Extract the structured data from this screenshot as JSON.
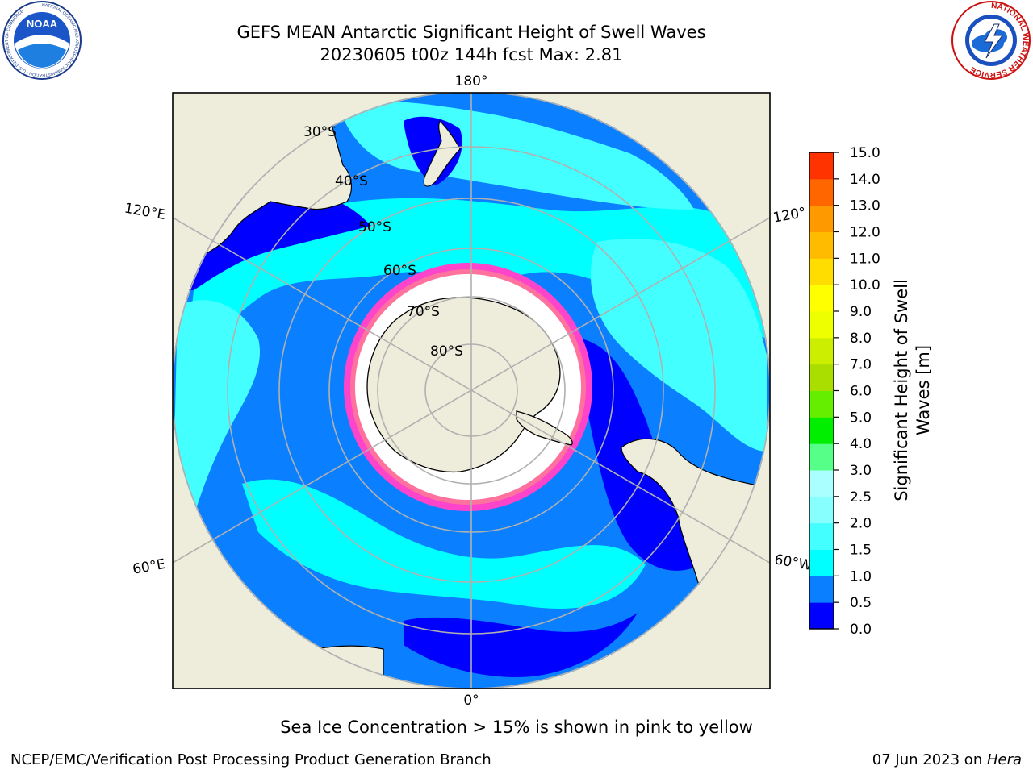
{
  "header": {
    "title": "GEFS MEAN Antarctic Significant Height of Swell Waves",
    "subtitle": "20230605 t00z 144h fcst   Max: 2.81"
  },
  "logos": {
    "left": {
      "icon": "noaa-logo",
      "text": "NOAA",
      "ring_text": "NATIONAL OCEANIC AND ATMOSPHERIC ADMINISTRATION · U.S. DEPARTMENT OF COMMERCE"
    },
    "right": {
      "icon": "nws-logo",
      "ring_text": "NATIONAL WEATHER SERVICE"
    }
  },
  "map": {
    "projection": "south-polar stereographic",
    "lon_labels": {
      "top": "180°",
      "bottom": "0°",
      "upper_left": "120°E",
      "upper_right": "120°",
      "lower_left": "60°E",
      "lower_right": "60°W"
    },
    "lat_labels": [
      "30°S",
      "40°S",
      "50°S",
      "60°S",
      "70°S",
      "80°S"
    ],
    "colors": {
      "land": "#eeecda",
      "ice_free_polar": "#ffffff",
      "sea_ice_edge": "#ff44cc",
      "gridline": "#b0b0b0",
      "band_0_0_5": "#0000ff",
      "band_0_5_1_0": "#0a7fff",
      "band_1_0_1_5": "#00ffff",
      "band_1_5_2_0": "#44ffff",
      "band_2_0_2_5": "#99ffff"
    }
  },
  "colorbar": {
    "label": "Significant Height of Swell Waves [m]",
    "label_line1": "Significant Height of Swell",
    "label_line2": "Waves [m]",
    "ticks": [
      "0.0",
      "0.5",
      "1.0",
      "1.5",
      "2.0",
      "2.5",
      "3.0",
      "4.0",
      "5.0",
      "6.0",
      "7.0",
      "8.0",
      "9.0",
      "10.0",
      "11.0",
      "12.0",
      "13.0",
      "14.0",
      "15.0"
    ],
    "colors": [
      "#0000ff",
      "#0a7fff",
      "#00ffff",
      "#44ffff",
      "#88ffff",
      "#aaffff",
      "#55ff88",
      "#00ee00",
      "#66ee00",
      "#aadd00",
      "#ccee00",
      "#eeff00",
      "#ffff00",
      "#ffdd00",
      "#ffbb00",
      "#ff9900",
      "#ff6600",
      "#ff3300",
      "#ff0000"
    ]
  },
  "footer": {
    "caption": "Sea Ice Concentration > 15% is shown in pink to yellow",
    "credit": "NCEP/EMC/Verification Post Processing Product Generation Branch",
    "date": "07 Jun 2023 on ",
    "host": "Hera"
  }
}
